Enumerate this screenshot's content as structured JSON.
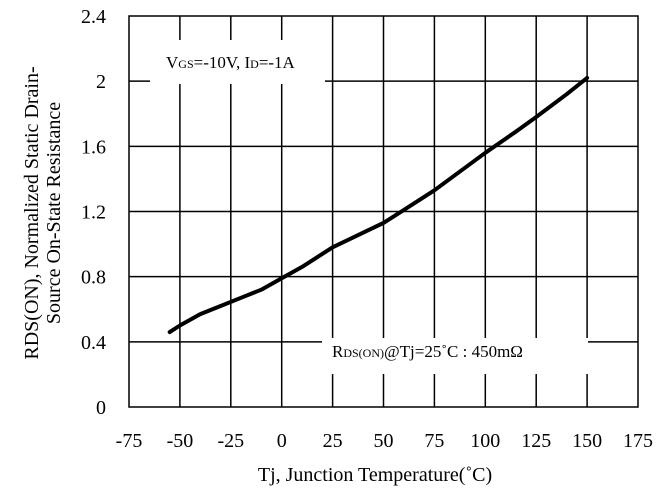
{
  "chart_data": {
    "type": "line",
    "xlabel": "Tj, Junction Temperature(˚C)",
    "ylabel_line1": "RDS(ON), Normalized Static Drain-",
    "ylabel_line2": "Source On-State Resistance",
    "xlim": [
      -75,
      175
    ],
    "ylim": [
      0,
      2.4
    ],
    "x_ticks": [
      "-75",
      "-50",
      "-25",
      "0",
      "25",
      "50",
      "75",
      "100",
      "125",
      "150",
      "175"
    ],
    "y_ticks": [
      "0",
      "0.4",
      "0.8",
      "1.2",
      "1.6",
      "2",
      "2.4"
    ],
    "grid": true,
    "series": [
      {
        "x": [
          -55,
          -50,
          -40,
          -30,
          -20,
          -10,
          0,
          10,
          25,
          40,
          50,
          60,
          75,
          100,
          115,
          125,
          140,
          150
        ],
        "y": [
          0.46,
          0.5,
          0.57,
          0.62,
          0.67,
          0.72,
          0.79,
          0.86,
          0.98,
          1.07,
          1.13,
          1.21,
          1.33,
          1.56,
          1.69,
          1.78,
          1.92,
          2.02
        ]
      }
    ],
    "annotations": {
      "condition": {
        "v": "V",
        "v_sub": "GS",
        "v_val": "=-10V, ",
        "i": "I",
        "i_sub": "D",
        "i_val": "=-1A"
      },
      "reference": {
        "r": "R",
        "r_sub": "DS(ON)",
        "rest": "@Tj=25˚C : 450mΩ"
      }
    }
  }
}
